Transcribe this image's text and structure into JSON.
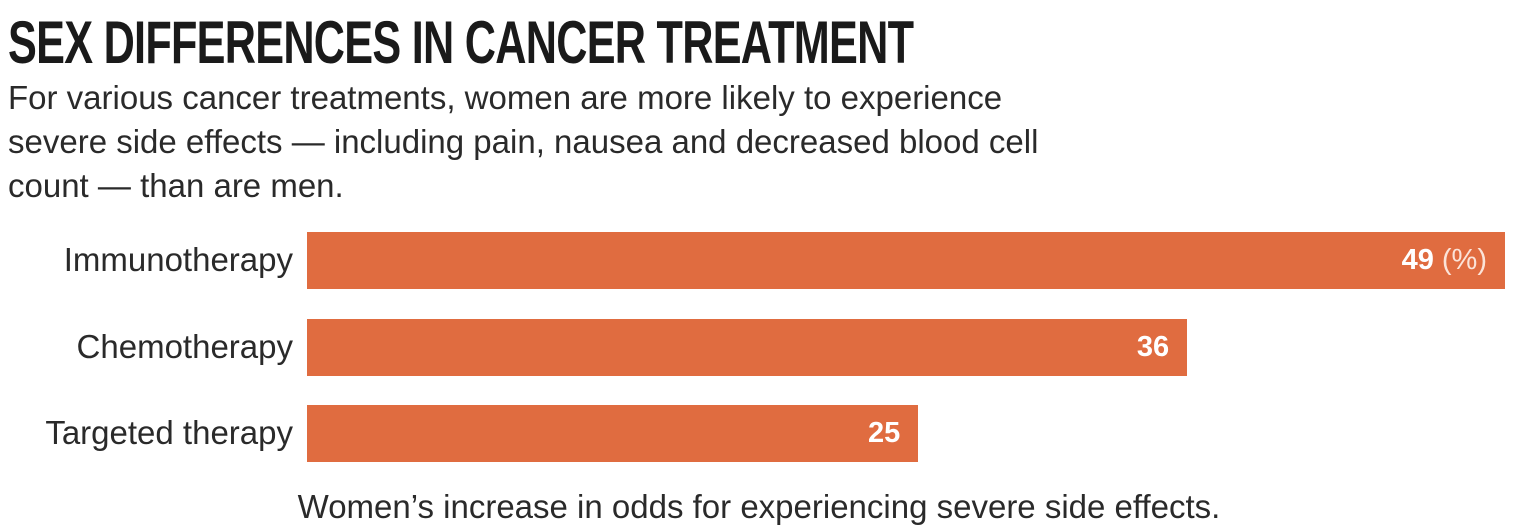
{
  "title": "SEX DIFFERENCES IN CANCER TREATMENT",
  "subtitle": "For various cancer treatments, women are more likely to experience severe side effects — including pain, nausea and decreased blood cell count — than are men.",
  "footer": "Women’s increase in odds for experiencing severe side effects.",
  "bar_color": "#e06c40",
  "chart_data": {
    "type": "bar",
    "orientation": "horizontal",
    "title": "SEX DIFFERENCES IN CANCER TREATMENT",
    "xlabel": "Women’s increase in odds for experiencing severe side effects.",
    "ylabel": "",
    "unit": "(%)",
    "categories": [
      "Immunotherapy",
      "Chemotherapy",
      "Targeted therapy"
    ],
    "values": [
      49,
      36,
      25
    ],
    "xlim": [
      0,
      49
    ],
    "grid": false
  }
}
